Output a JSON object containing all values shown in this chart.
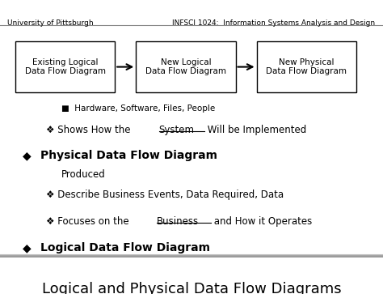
{
  "title": "Logical and Physical Data Flow Diagrams",
  "bg_color": "#ffffff",
  "title_color": "#000000",
  "title_fontsize": 13,
  "bullet1": "Logical Data Flow Diagram",
  "bullet2": "Physical Data Flow Diagram",
  "sub1a_prefix": "❖ Focuses on the ",
  "sub1a_underline": "Business",
  "sub1a_suffix": " and How it Operates",
  "sub1b_line1": "❖ Describe Business Events, Data Required, Data",
  "sub1b_line2": "Produced",
  "sub2a_prefix": "❖ Shows How the ",
  "sub2a_underline": "System",
  "sub2a_suffix": " Will be Implemented",
  "sub2b": "■  Hardware, Software, Files, People",
  "box1": "Existing Logical\nData Flow Diagram",
  "box2": "New Logical\nData Flow Diagram",
  "box3": "New Physical\nData Flow Diagram",
  "footer_left": "University of Pittsburgh",
  "footer_right": "INFSCI 1024:  Information Systems Analysis and Design",
  "box_color": "#ffffff",
  "box_edge_color": "#000000",
  "arrow_color": "#000000",
  "text_color": "#000000",
  "footer_color": "#000000",
  "slide_bg": "#d0d0d0"
}
